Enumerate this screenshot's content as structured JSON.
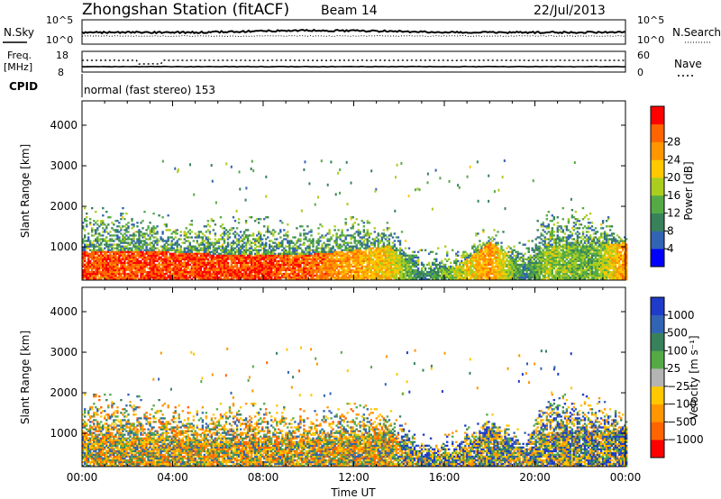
{
  "header": {
    "station": "Zhongshan Station (fitACF)",
    "beam": "Beam 14",
    "date": "22/Jul/2013"
  },
  "panels": {
    "nsky": {
      "left_label": "N.Sky",
      "right_label": "N.Search",
      "left_ticks": [
        "10^5",
        "10^0"
      ],
      "right_ticks": [
        "10^5",
        "10^0"
      ]
    },
    "freq": {
      "left_label_1": "Freq.",
      "left_label_2": "[MHz]",
      "right_label": "Nave",
      "left_ticks": [
        "18",
        "8"
      ],
      "right_ticks": [
        "60",
        "0"
      ]
    },
    "cpid": {
      "label": "CPID",
      "mode_text": "normal (fast stereo) 153"
    }
  },
  "colors": {
    "power": [
      "#0000ff",
      "#3264b4",
      "#37825a",
      "#55aa46",
      "#aacd1e",
      "#ffc800",
      "#ff9600",
      "#ff6400",
      "#ff0000"
    ],
    "velocity": [
      "#ff0000",
      "#ff6400",
      "#ff9600",
      "#ffc800",
      "#b4b4b4",
      "#55aa46",
      "#37825a",
      "#3264b4",
      "#1e3cc8"
    ]
  },
  "chart_data": [
    {
      "type": "heatmap",
      "name": "power",
      "ylabel": "Slant Range [km]",
      "yticks": [
        "1000",
        "2000",
        "3000",
        "4000"
      ],
      "ylim": [
        180,
        4600
      ],
      "xlim": [
        0,
        24
      ],
      "colorbar_label": "Power [dB]",
      "colorbar_ticks": [
        "4",
        "8",
        "12",
        "16",
        "20",
        "24",
        "28"
      ],
      "clim": [
        0,
        32
      ],
      "profile": [
        {
          "t": 0,
          "top": 1700,
          "core_top": 900,
          "core_val": 28
        },
        {
          "t": 2,
          "top": 1700,
          "core_top": 900,
          "core_val": 27
        },
        {
          "t": 4,
          "top": 1500,
          "core_top": 850,
          "core_val": 28
        },
        {
          "t": 6,
          "top": 1500,
          "core_top": 800,
          "core_val": 28
        },
        {
          "t": 8,
          "top": 1500,
          "core_top": 800,
          "core_val": 28
        },
        {
          "t": 10,
          "top": 1300,
          "core_top": 800,
          "core_val": 26
        },
        {
          "t": 12,
          "top": 1500,
          "core_top": 900,
          "core_val": 22
        },
        {
          "t": 13.5,
          "top": 1400,
          "core_top": 1000,
          "core_val": 20
        },
        {
          "t": 15,
          "top": 700,
          "core_top": 400,
          "core_val": 8
        },
        {
          "t": 16.5,
          "top": 800,
          "core_top": 500,
          "core_val": 16
        },
        {
          "t": 18,
          "top": 1300,
          "core_top": 1100,
          "core_val": 24
        },
        {
          "t": 19.5,
          "top": 800,
          "core_top": 500,
          "core_val": 8
        },
        {
          "t": 20.5,
          "top": 1800,
          "core_top": 1000,
          "core_val": 16
        },
        {
          "t": 22.5,
          "top": 1700,
          "core_top": 1000,
          "core_val": 12
        },
        {
          "t": 24,
          "top": 1200,
          "core_top": 1100,
          "core_val": 24
        }
      ]
    },
    {
      "type": "heatmap",
      "name": "velocity",
      "ylabel": "Slant Range [km]",
      "yticks": [
        "1000",
        "2000",
        "3000",
        "4000"
      ],
      "ylim": [
        180,
        4600
      ],
      "xlim": [
        0,
        24
      ],
      "xlabel": "Time UT",
      "xticks": [
        "00:00",
        "04:00",
        "08:00",
        "12:00",
        "16:00",
        "20:00",
        "00:00"
      ],
      "colorbar_label": "Velocity [m s⁻¹]",
      "colorbar_ticks": [
        "1000",
        "500",
        "100",
        "25",
        "−25",
        "−100",
        "−500",
        "−1000"
      ],
      "clim": [
        -1200,
        1200
      ]
    }
  ]
}
